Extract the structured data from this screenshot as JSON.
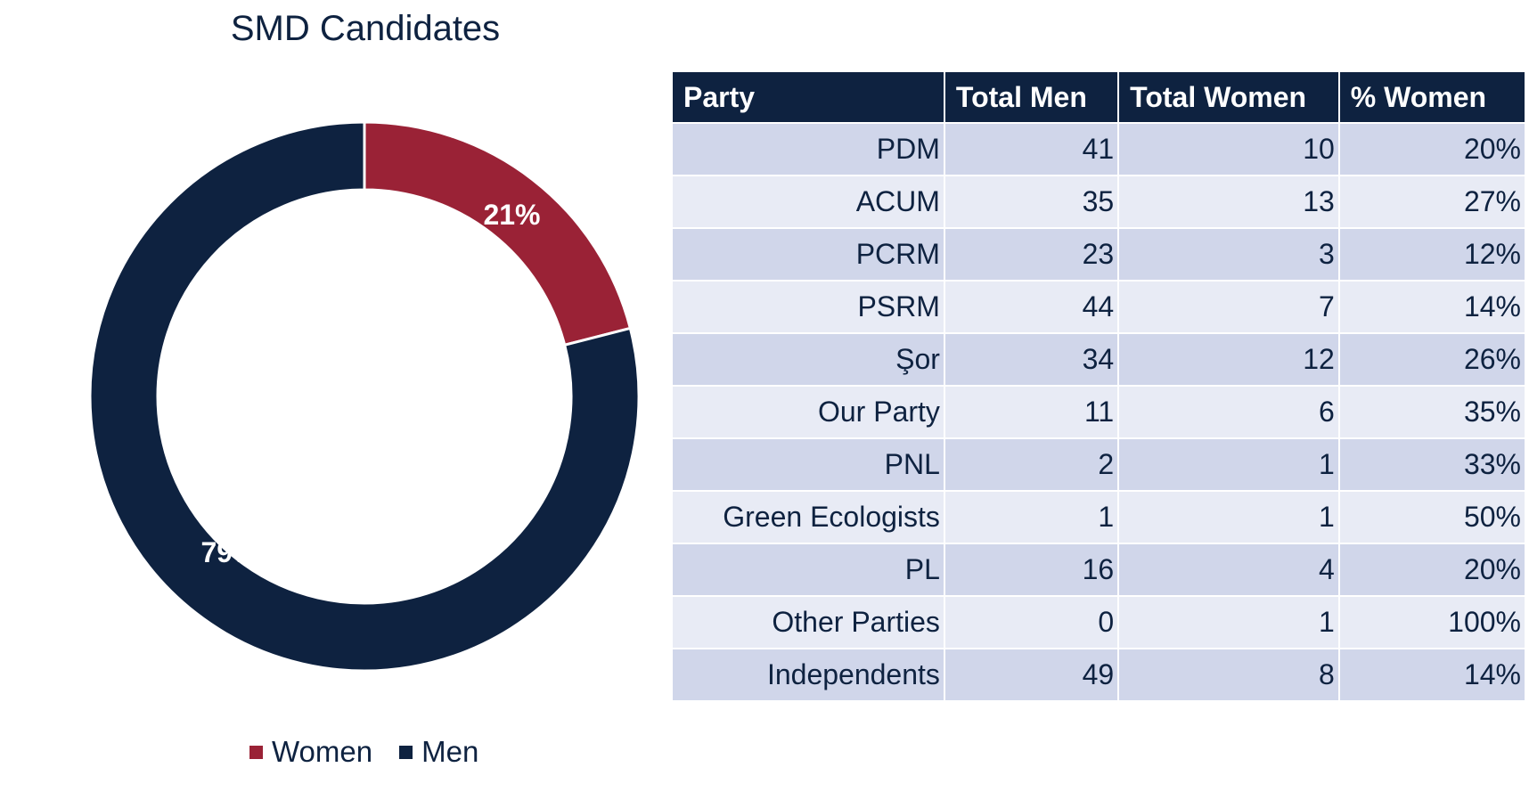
{
  "chart_data": [
    {
      "type": "pie",
      "title": "SMD Candidates",
      "categories": [
        "Women",
        "Men"
      ],
      "values": [
        21,
        79
      ],
      "labels": [
        "21%",
        "79%"
      ],
      "colors": [
        "#9a2236",
        "#0e2240"
      ],
      "legend": "bottom"
    },
    {
      "type": "table",
      "headers": [
        "Party",
        "Total Men",
        "Total Women",
        "% Women"
      ],
      "rows": [
        [
          "PDM",
          "41",
          "10",
          "20%"
        ],
        [
          "ACUM",
          "35",
          "13",
          "27%"
        ],
        [
          "PCRM",
          "23",
          "3",
          "12%"
        ],
        [
          "PSRM",
          "44",
          "7",
          "14%"
        ],
        [
          "Şor",
          "34",
          "12",
          "26%"
        ],
        [
          "Our Party",
          "11",
          "6",
          "35%"
        ],
        [
          "PNL",
          "2",
          "1",
          "33%"
        ],
        [
          "Green Ecologists",
          "1",
          "1",
          "50%"
        ],
        [
          "PL",
          "16",
          "4",
          "20%"
        ],
        [
          "Other Parties",
          "0",
          "1",
          "100%"
        ],
        [
          "Independents",
          "49",
          "8",
          "14%"
        ]
      ]
    }
  ]
}
